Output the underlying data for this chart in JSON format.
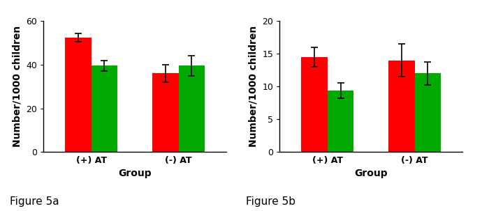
{
  "fig5a": {
    "groups": [
      "(+) AT",
      "(-) AT"
    ],
    "red_values": [
      52.5,
      36.0
    ],
    "green_values": [
      39.5,
      39.5
    ],
    "red_errors": [
      2.0,
      4.0
    ],
    "green_errors": [
      2.5,
      4.5
    ],
    "ylabel": "Number/1000 children",
    "xlabel": "Group",
    "ylim": [
      0,
      60
    ],
    "yticks": [
      0,
      20,
      40,
      60
    ],
    "caption": "Figure 5a"
  },
  "fig5b": {
    "groups": [
      "(+) AT",
      "(-) AT"
    ],
    "red_values": [
      14.5,
      14.0
    ],
    "green_values": [
      9.4,
      12.0
    ],
    "red_errors": [
      1.5,
      2.5
    ],
    "green_errors": [
      1.2,
      1.8
    ],
    "ylabel": "Number/1000 children",
    "xlabel": "Group",
    "ylim": [
      0,
      20
    ],
    "yticks": [
      0,
      5,
      10,
      15,
      20
    ],
    "caption": "Figure 5b"
  },
  "red_color": "#FF0000",
  "green_color": "#00AA00",
  "bar_width": 0.3,
  "caption_fontsize": 11,
  "axis_label_fontsize": 10,
  "tick_fontsize": 9
}
